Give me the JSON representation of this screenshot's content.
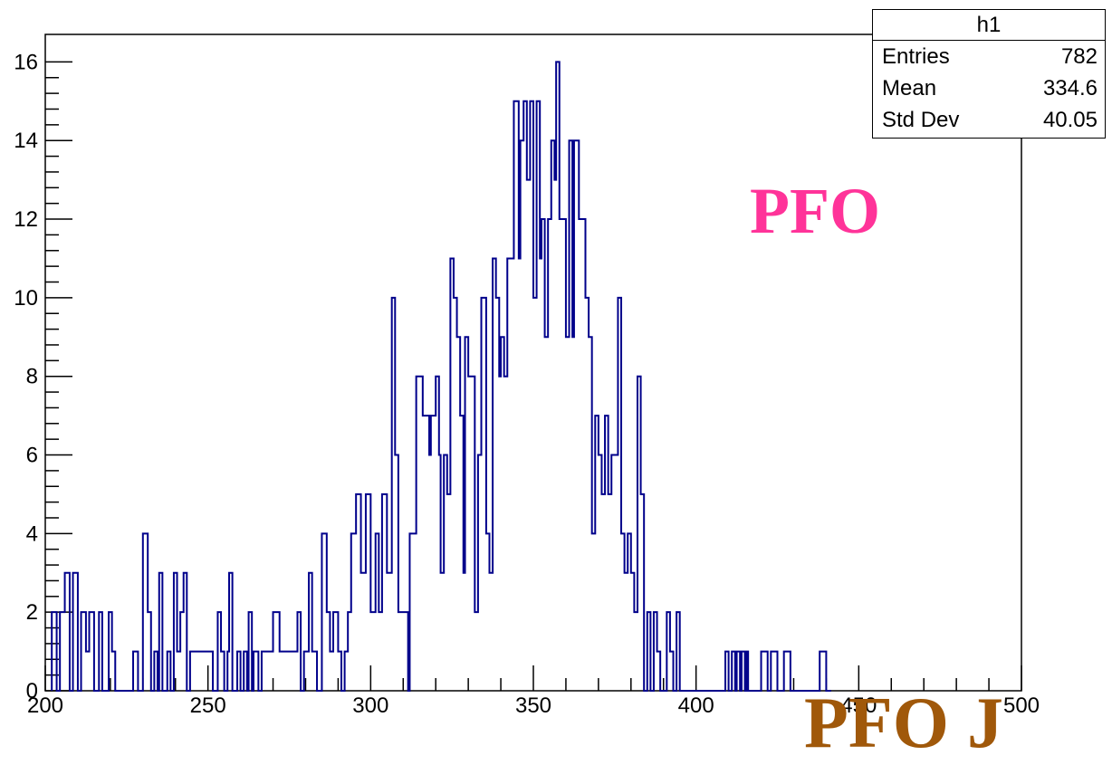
{
  "chart_data": {
    "type": "histogram",
    "xlim": [
      200,
      500
    ],
    "ylim": [
      0,
      16.7
    ],
    "bin_width": 1.5,
    "x_ticks": [
      200,
      250,
      300,
      350,
      400,
      450,
      500
    ],
    "y_ticks": [
      0,
      2,
      4,
      6,
      8,
      10,
      12,
      14,
      16
    ],
    "grid": false,
    "line_color": "#00008b",
    "bins": [
      [
        202,
        2
      ],
      [
        203.5,
        0
      ],
      [
        204.5,
        2
      ],
      [
        206,
        3
      ],
      [
        207.5,
        0
      ],
      [
        208.5,
        3
      ],
      [
        210,
        0
      ],
      [
        211,
        2
      ],
      [
        212.5,
        1
      ],
      [
        213.5,
        2
      ],
      [
        215,
        0
      ],
      [
        216.5,
        2
      ],
      [
        217.5,
        0
      ],
      [
        219.5,
        2
      ],
      [
        220.5,
        1
      ],
      [
        221.5,
        0
      ],
      [
        227,
        1
      ],
      [
        228.5,
        0
      ],
      [
        230,
        4
      ],
      [
        231.5,
        2
      ],
      [
        232.5,
        0
      ],
      [
        233.5,
        1
      ],
      [
        234.5,
        0
      ],
      [
        235,
        3
      ],
      [
        236,
        0
      ],
      [
        237.5,
        1
      ],
      [
        238.5,
        0
      ],
      [
        239.5,
        3
      ],
      [
        240.5,
        1
      ],
      [
        241.5,
        2
      ],
      [
        242.5,
        3
      ],
      [
        243.5,
        0
      ],
      [
        244.5,
        1
      ],
      [
        250,
        1
      ],
      [
        251.5,
        0
      ],
      [
        253,
        2
      ],
      [
        254,
        1
      ],
      [
        255,
        0
      ],
      [
        256,
        1
      ],
      [
        256.5,
        3
      ],
      [
        257.5,
        0
      ],
      [
        259,
        1
      ],
      [
        260,
        0
      ],
      [
        261,
        1
      ],
      [
        262,
        0
      ],
      [
        262.5,
        2
      ],
      [
        263.5,
        0
      ],
      [
        264,
        1
      ],
      [
        265.5,
        0
      ],
      [
        266.5,
        1
      ],
      [
        270,
        2
      ],
      [
        272,
        1
      ],
      [
        275,
        1
      ],
      [
        277.5,
        2
      ],
      [
        278.5,
        0
      ],
      [
        279.5,
        1
      ],
      [
        281,
        3
      ],
      [
        282,
        1
      ],
      [
        283.5,
        0
      ],
      [
        285,
        4
      ],
      [
        286.5,
        2
      ],
      [
        287.5,
        1
      ],
      [
        288.5,
        2
      ],
      [
        290,
        1
      ],
      [
        291,
        0
      ],
      [
        292,
        1
      ],
      [
        293,
        2
      ],
      [
        294,
        4
      ],
      [
        295.5,
        5
      ],
      [
        297,
        3
      ],
      [
        298.5,
        5
      ],
      [
        300,
        2
      ],
      [
        301.5,
        4
      ],
      [
        302.5,
        2
      ],
      [
        303.5,
        5
      ],
      [
        305,
        3
      ],
      [
        306.5,
        10
      ],
      [
        307.5,
        6
      ],
      [
        308.5,
        2
      ],
      [
        311,
        2
      ],
      [
        311.5,
        0
      ],
      [
        312,
        4
      ],
      [
        314,
        8
      ],
      [
        316,
        7
      ],
      [
        318,
        6
      ],
      [
        318.5,
        7
      ],
      [
        320,
        8
      ],
      [
        321,
        6
      ],
      [
        321.5,
        3
      ],
      [
        322.5,
        6
      ],
      [
        323.5,
        5
      ],
      [
        324.5,
        11
      ],
      [
        325.5,
        10
      ],
      [
        326.5,
        9
      ],
      [
        327.5,
        7
      ],
      [
        328.5,
        3
      ],
      [
        329,
        9
      ],
      [
        330,
        8
      ],
      [
        332,
        2
      ],
      [
        333,
        6
      ],
      [
        334,
        10
      ],
      [
        335.5,
        4
      ],
      [
        336.5,
        3
      ],
      [
        337.5,
        11
      ],
      [
        338.5,
        10
      ],
      [
        339.5,
        8
      ],
      [
        340,
        9
      ],
      [
        341,
        8
      ],
      [
        342,
        11
      ],
      [
        344,
        15
      ],
      [
        345.5,
        11
      ],
      [
        346,
        14
      ],
      [
        347,
        15
      ],
      [
        348,
        13
      ],
      [
        349,
        15
      ],
      [
        350,
        10
      ],
      [
        351,
        15
      ],
      [
        352,
        11
      ],
      [
        352.5,
        12
      ],
      [
        353.5,
        9
      ],
      [
        354.5,
        12
      ],
      [
        355.5,
        14
      ],
      [
        356.5,
        13
      ],
      [
        357,
        16
      ],
      [
        358,
        12
      ],
      [
        360,
        9
      ],
      [
        361,
        14
      ],
      [
        362,
        9
      ],
      [
        362.5,
        14
      ],
      [
        364,
        12
      ],
      [
        366,
        10
      ],
      [
        367,
        9
      ],
      [
        368,
        4
      ],
      [
        369,
        7
      ],
      [
        370,
        6
      ],
      [
        371,
        5
      ],
      [
        372,
        7
      ],
      [
        373,
        5
      ],
      [
        374,
        6
      ],
      [
        376,
        10
      ],
      [
        377,
        4
      ],
      [
        378,
        3
      ],
      [
        379,
        4
      ],
      [
        380,
        3
      ],
      [
        381,
        2
      ],
      [
        382,
        8
      ],
      [
        383,
        5
      ],
      [
        384,
        0
      ],
      [
        385,
        2
      ],
      [
        386,
        0
      ],
      [
        387,
        2
      ],
      [
        388,
        1
      ],
      [
        389,
        0
      ],
      [
        391,
        2
      ],
      [
        392,
        1
      ],
      [
        393,
        0
      ],
      [
        394,
        2
      ],
      [
        395,
        0
      ],
      [
        409,
        1
      ],
      [
        410,
        0
      ],
      [
        411,
        1
      ],
      [
        412,
        0
      ],
      [
        412.5,
        1
      ],
      [
        413.5,
        0
      ],
      [
        414,
        1
      ],
      [
        415,
        0
      ],
      [
        415.5,
        1
      ],
      [
        416,
        0
      ],
      [
        420,
        1
      ],
      [
        422,
        0
      ],
      [
        423,
        1
      ],
      [
        425,
        0
      ],
      [
        427,
        1
      ],
      [
        429,
        0
      ],
      [
        438,
        1
      ],
      [
        440,
        0
      ]
    ]
  },
  "stats": {
    "title": "h1",
    "rows": [
      {
        "label": "Entries",
        "value": "782"
      },
      {
        "label": "Mean",
        "value": "334.6"
      },
      {
        "label": "Std Dev",
        "value": "40.05"
      }
    ]
  },
  "annotations": {
    "pfo": {
      "text": "PFO",
      "color": "#ff3399"
    },
    "overlay": {
      "text": "PFO J",
      "color": "#a0580a"
    }
  }
}
